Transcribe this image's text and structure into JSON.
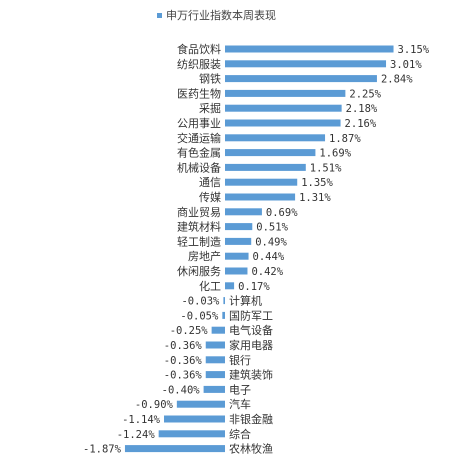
{
  "chart_data": {
    "type": "bar",
    "orientation": "horizontal",
    "legend": {
      "position": "top"
    },
    "series": [
      {
        "name": "申万行业指数本周表现",
        "color": "#5b9bd5"
      }
    ],
    "categories": [
      "食品饮料",
      "纺织服装",
      "钢铁",
      "医药生物",
      "采掘",
      "公用事业",
      "交通运输",
      "有色金属",
      "机械设备",
      "通信",
      "传媒",
      "商业贸易",
      "建筑材料",
      "轻工制造",
      "房地产",
      "休闲服务",
      "化工",
      "计算机",
      "国防军工",
      "电气设备",
      "家用电器",
      "银行",
      "建筑装饰",
      "电子",
      "汽车",
      "非银金融",
      "综合",
      "农林牧渔"
    ],
    "values": [
      3.15,
      3.01,
      2.84,
      2.25,
      2.18,
      2.16,
      1.87,
      1.69,
      1.51,
      1.35,
      1.31,
      0.69,
      0.51,
      0.49,
      0.44,
      0.42,
      0.17,
      -0.03,
      -0.05,
      -0.25,
      -0.36,
      -0.36,
      -0.36,
      -0.4,
      -0.9,
      -1.14,
      -1.24,
      -1.87
    ],
    "value_labels": [
      "3.15%",
      "3.01%",
      "2.84%",
      "2.25%",
      "2.18%",
      "2.16%",
      "1.87%",
      "1.69%",
      "1.51%",
      "1.35%",
      "1.31%",
      "0.69%",
      "0.51%",
      "0.49%",
      "0.44%",
      "0.42%",
      "0.17%",
      "-0.03%",
      "-0.05%",
      "-0.25%",
      "-0.36%",
      "-0.36%",
      "-0.36%",
      "-0.40%",
      "-0.90%",
      "-1.14%",
      "-1.24%",
      "-1.87%"
    ],
    "xlim": [
      -1.87,
      3.15
    ],
    "grid": false
  }
}
